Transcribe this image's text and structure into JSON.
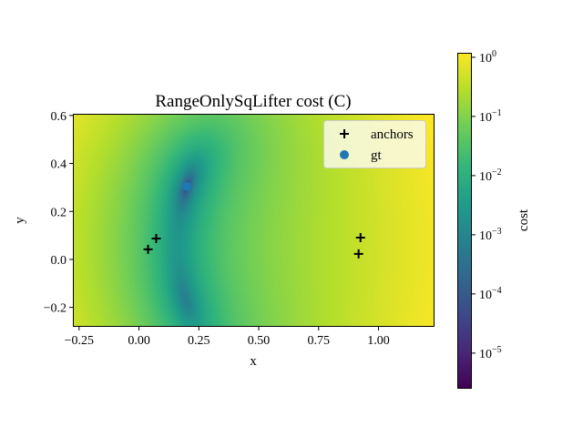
{
  "chart_data": {
    "type": "heatmap",
    "title": "RangeOnlySqLifter cost (C)",
    "xlabel": "x",
    "ylabel": "y",
    "xlim": [
      -0.276,
      1.234
    ],
    "ylim": [
      -0.281,
      0.607
    ],
    "xticks": [
      -0.25,
      0.0,
      0.25,
      0.5,
      0.75,
      1.0
    ],
    "xtick_labels": [
      "−0.25",
      "0.00",
      "0.25",
      "0.50",
      "0.75",
      "1.00"
    ],
    "yticks": [
      -0.2,
      0.0,
      0.2,
      0.4,
      0.6
    ],
    "ytick_labels": [
      "−0.2",
      "0.0",
      "0.2",
      "0.4",
      "0.6"
    ],
    "colormap": "viridis",
    "color_scale": "log",
    "colorbar": {
      "label": "cost",
      "range": [
        2.5e-06,
        1.19
      ],
      "ticks": [
        0,
        -1,
        -2,
        -3,
        -4,
        -5
      ],
      "tick_base": "10",
      "tick_exponents": [
        "0",
        "−1",
        "−2",
        "−3",
        "−4",
        "−5"
      ]
    },
    "series": [
      {
        "name": "anchors",
        "type": "scatter",
        "marker": "plus",
        "color": "#000000",
        "points": [
          [
            0.072,
            0.087
          ],
          [
            0.038,
            0.042
          ],
          [
            0.925,
            0.091
          ],
          [
            0.917,
            0.023
          ]
        ]
      },
      {
        "name": "gt",
        "type": "scatter",
        "marker": "circle",
        "color": "#1f77b4",
        "points": [
          [
            0.2,
            0.304
          ]
        ]
      }
    ],
    "legend": {
      "placement": "top-right",
      "entries": [
        "anchors",
        "gt"
      ]
    },
    "grid": false
  }
}
